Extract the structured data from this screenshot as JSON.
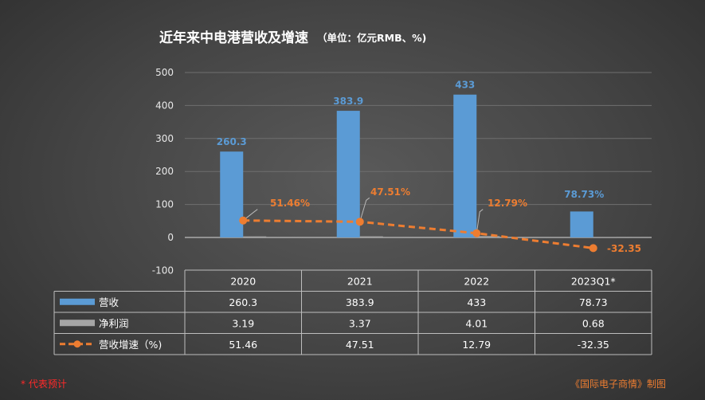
{
  "title": {
    "main": "近年来中电港营收及增速",
    "unit": "（单位：亿元RMB、%)"
  },
  "footnote": "* 代表预计",
  "source": "《国际电子商情》制图",
  "colors": {
    "bar": "#5b9bd5",
    "line": "#ed7d31",
    "profit": "#a5a5a5"
  },
  "chart_data": {
    "type": "bar",
    "categories": [
      "2020",
      "2021",
      "2022",
      "2023Q1*"
    ],
    "ylim": [
      -100,
      500
    ],
    "yticks": [
      500,
      400,
      300,
      200,
      100,
      0,
      -100
    ],
    "grid": true,
    "series": [
      {
        "name": "营收",
        "type": "bar",
        "values": [
          260.3,
          383.9,
          433,
          78.73
        ]
      },
      {
        "name": "净利润",
        "type": "bar",
        "values": [
          3.19,
          3.37,
          4.01,
          0.68
        ]
      },
      {
        "name": "营收增速（%)",
        "type": "line",
        "values": [
          51.46,
          47.51,
          12.79,
          -32.35
        ]
      }
    ],
    "bar_labels": [
      "260.3",
      "383.9",
      "433",
      "78.73%"
    ],
    "line_labels": [
      "51.46%",
      "47.51%",
      "12.79%",
      "-32.35"
    ],
    "table": {
      "rows": [
        [
          "260.3",
          "383.9",
          "433",
          "78.73"
        ],
        [
          "3.19",
          "3.37",
          "4.01",
          "0.68"
        ],
        [
          "51.46",
          "47.51",
          "12.79",
          "-32.35"
        ]
      ]
    }
  }
}
